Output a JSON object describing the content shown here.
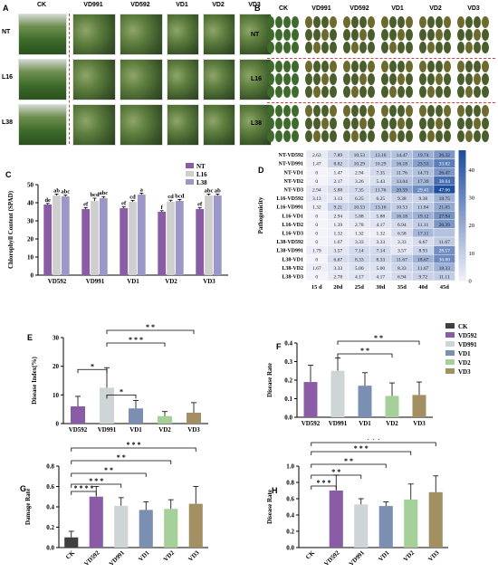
{
  "panel_labels": {
    "A": "A",
    "B": "B",
    "C": "C",
    "D": "D",
    "E": "E",
    "F": "F",
    "G": "G",
    "H": "H"
  },
  "panel_a": {
    "columns": [
      "CK",
      "VD991",
      "VD592",
      "VD1",
      "VD2",
      "VD3"
    ],
    "rows": [
      "NT",
      "L16",
      "L38"
    ]
  },
  "panel_b": {
    "columns": [
      "CK",
      "VD991",
      "VD592",
      "VD1",
      "VD2",
      "VD3"
    ],
    "rows": [
      "NT",
      "L16",
      "L38"
    ]
  },
  "colors": {
    "NT": "#8a5ca6",
    "L16": "#cfcfcf",
    "L38": "#9d96c9",
    "CK": "#3f3f3f",
    "VD592": "#8a5ca6",
    "VD991": "#cfd4d6",
    "VD1": "#7b8fb3",
    "VD2": "#a6d09a",
    "VD3": "#a39062",
    "heat_low": "#ffffff",
    "heat_high": "#1f4f9e"
  },
  "chart_data": [
    {
      "id": "C",
      "type": "bar",
      "categories": [
        "VD592",
        "VD991",
        "VD1",
        "VD2",
        "VD3"
      ],
      "series": [
        {
          "name": "NT",
          "values": [
            39,
            36.5,
            37,
            35,
            36.5
          ],
          "errors": [
            0.6,
            0.8,
            0.7,
            0.6,
            0.7
          ],
          "labels": [
            "de",
            "ef",
            "ef",
            "f",
            "ef"
          ]
        },
        {
          "name": "L16",
          "values": [
            44,
            41,
            40.5,
            40.5,
            44
          ],
          "errors": [
            0.8,
            1.5,
            0.8,
            0.9,
            0.8
          ],
          "labels": [
            "ab",
            "bcd",
            "cd",
            "cd",
            "abc"
          ]
        },
        {
          "name": "L38",
          "values": [
            43.5,
            42.5,
            44.5,
            41,
            44
          ],
          "errors": [
            0.7,
            0.9,
            0.8,
            0.8,
            0.8
          ],
          "labels": [
            "abc",
            "abc",
            "a",
            "bcd",
            "ab"
          ]
        }
      ],
      "ylabel": "Chlorophyll Content (SPAD)",
      "ylim": [
        0,
        50
      ],
      "yticks": [
        "0",
        "10",
        "20",
        "30",
        "40",
        "50"
      ],
      "legend": "top-right"
    },
    {
      "id": "D",
      "type": "heatmap",
      "rows": [
        "NT-VD592",
        "NT-VD991",
        "NT-VD1",
        "NT-VD2",
        "NT-VD3",
        "L16-VD592",
        "L16-VD991",
        "L16-VD1",
        "L16-VD2",
        "L16-VD3",
        "L38-VD592",
        "L38-VD991",
        "L38-VD1",
        "L38-VD2",
        "L38-VD3"
      ],
      "columns": [
        "15 d",
        "20d",
        "25d",
        "30d",
        "35d",
        "40d",
        "45d"
      ],
      "values": [
        [
          "2.63",
          "7.89",
          "10.53",
          "13.16",
          "14.47",
          "19.74",
          "26.32"
        ],
        [
          "1.47",
          "8.82",
          "10.29",
          "10.29",
          "16.18",
          "23.53",
          "33.82"
        ],
        [
          "0",
          "1.47",
          "2.94",
          "7.35",
          "11.76",
          "14.71",
          "26.47"
        ],
        [
          "0",
          "2.17",
          "3.26",
          "5.43",
          "13.04",
          "17.39",
          "38.04"
        ],
        [
          "2.94",
          "5.88",
          "7.35",
          "11.76",
          "20.59",
          "29.41",
          "47.06"
        ],
        [
          "3.13",
          "3.13",
          "6.25",
          "6.25",
          "9.38",
          "9.38",
          "18.75"
        ],
        [
          "1.32",
          "9.21",
          "10.53",
          "13.16",
          "10.53",
          "11.84",
          "21.05"
        ],
        [
          "0",
          "2.94",
          "5.88",
          "5.88",
          "16.18",
          "19.12",
          "27.94"
        ],
        [
          "0",
          "1.39",
          "2.78",
          "4.17",
          "6.94",
          "11.11",
          "26.39"
        ],
        [
          "0",
          "1.32",
          "1.32",
          "1.32",
          "6.58",
          "17.11",
          ""
        ],
        [
          "0",
          "1.67",
          "3.33",
          "3.33",
          "3.33",
          "6.67",
          "11.67"
        ],
        [
          "1.79",
          "3.57",
          "7.14",
          "7.14",
          "3.57",
          "8.93",
          "28.57"
        ],
        [
          "0",
          "6.67",
          "8.33",
          "8.33",
          "11.67",
          "18.67",
          "30.00"
        ],
        [
          "1.67",
          "3.33",
          "5.00",
          "5.00",
          "8.33",
          "11.67",
          "18.33"
        ],
        [
          "0",
          "2.78",
          "4.17",
          "4.17",
          "6.94",
          "9.72",
          "11.11"
        ]
      ],
      "ylabel": "Pathogenicity",
      "colorbar_ticks": [
        "40",
        "30",
        "20",
        "10",
        "0"
      ],
      "vmin": 0,
      "vmax": 47
    },
    {
      "id": "E",
      "type": "bar",
      "categories": [
        "VD592",
        "VD991",
        "VD1",
        "VD2",
        "VD3"
      ],
      "values": [
        6,
        12.5,
        5.3,
        2.6,
        3.8
      ],
      "errors": [
        3.5,
        7,
        2.8,
        1.6,
        3.5
      ],
      "ylabel": "Disease Index(%)",
      "ylim": [
        0,
        30
      ],
      "yticks": [
        "0",
        "10",
        "20",
        "30"
      ],
      "significance": [
        "*",
        "*",
        "* * *",
        "* *"
      ]
    },
    {
      "id": "F",
      "type": "bar",
      "categories": [
        "VD592",
        "VD991",
        "VD1",
        "VD2",
        "VD3"
      ],
      "values": [
        0.19,
        0.25,
        0.17,
        0.115,
        0.12
      ],
      "errors": [
        0.09,
        0.07,
        0.07,
        0.07,
        0.07
      ],
      "ylabel": "Disease Rate",
      "ylim": [
        0,
        0.4
      ],
      "yticks": [
        "0.0",
        "0.1",
        "0.2",
        "0.3",
        "0.4"
      ],
      "significance": [
        "* *",
        "* *"
      ],
      "legend": [
        "CK",
        "VD592",
        "VD991",
        "VD1",
        "VD2",
        "VD3"
      ]
    },
    {
      "id": "G",
      "type": "bar",
      "categories": [
        "CK",
        "VD592",
        "VD991",
        "VD1",
        "VD2",
        "VD3"
      ],
      "values": [
        0.1,
        0.5,
        0.41,
        0.37,
        0.38,
        0.43
      ],
      "errors": [
        0.06,
        0.1,
        0.08,
        0.08,
        0.09,
        0.17
      ],
      "ylabel": "Damage Rate",
      "ylim": [
        0,
        0.8
      ],
      "yticks": [
        "0.0",
        "0.2",
        "0.4",
        "0.6",
        "0.8"
      ],
      "significance": [
        "* * * *",
        "* * *",
        "* *",
        "* *",
        "* * *"
      ]
    },
    {
      "id": "H",
      "type": "bar",
      "categories": [
        "CK",
        "VD592",
        "VD991",
        "VD1",
        "VD2",
        "VD3"
      ],
      "values": [
        0,
        0.7,
        0.53,
        0.51,
        0.59,
        0.68
      ],
      "errors": [
        0,
        0.19,
        0.07,
        0.05,
        0.19,
        0.2
      ],
      "ylabel": "Disease Rate",
      "ylim": [
        0,
        1.0
      ],
      "yticks": [
        "0.0",
        "0.2",
        "0.4",
        "0.6",
        "0.8",
        "1.0"
      ],
      "significance": [
        "* * *",
        "* *",
        "* *",
        "* * *",
        "* * *"
      ]
    }
  ]
}
